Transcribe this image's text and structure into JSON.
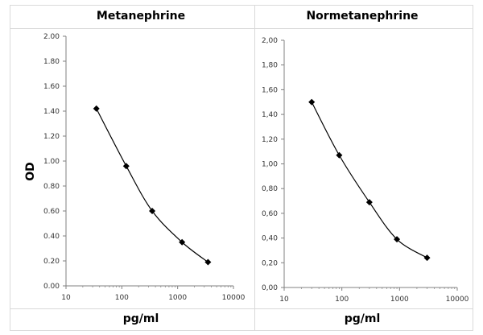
{
  "ylabel": "OD",
  "xlabel": "pg/ml",
  "colors": {
    "axis": "#808080",
    "line": "#000000",
    "marker": "#000000",
    "grid": "#d9d9d9"
  },
  "chart_data": [
    {
      "type": "line",
      "title": "Metanephrine",
      "xlabel": "pg/ml",
      "ylabel": "OD",
      "x_scale": "log",
      "xlim": [
        10,
        10000
      ],
      "ylim": [
        0,
        2
      ],
      "x_ticks": [
        "10",
        "100",
        "1000",
        "10000"
      ],
      "y_ticks": [
        "0.00",
        "0.20",
        "0.40",
        "0.60",
        "0.80",
        "1.00",
        "1.20",
        "1.40",
        "1.60",
        "1.80",
        "2.00"
      ],
      "x": [
        35,
        120,
        350,
        1200,
        3500
      ],
      "y": [
        1.42,
        0.96,
        0.6,
        0.35,
        0.19
      ]
    },
    {
      "type": "line",
      "title": "Normetanephrine",
      "xlabel": "pg/ml",
      "ylabel": "",
      "x_scale": "log",
      "xlim": [
        10,
        10000
      ],
      "ylim": [
        0,
        2
      ],
      "x_ticks": [
        "10",
        "100",
        "1000",
        "10000"
      ],
      "y_ticks": [
        "0,00",
        "0,20",
        "0,40",
        "0,60",
        "0,80",
        "1,00",
        "1,20",
        "1,40",
        "1,60",
        "1,80",
        "2,00"
      ],
      "x": [
        30,
        90,
        300,
        900,
        3000
      ],
      "y": [
        1.5,
        1.07,
        0.69,
        0.39,
        0.24
      ]
    }
  ]
}
